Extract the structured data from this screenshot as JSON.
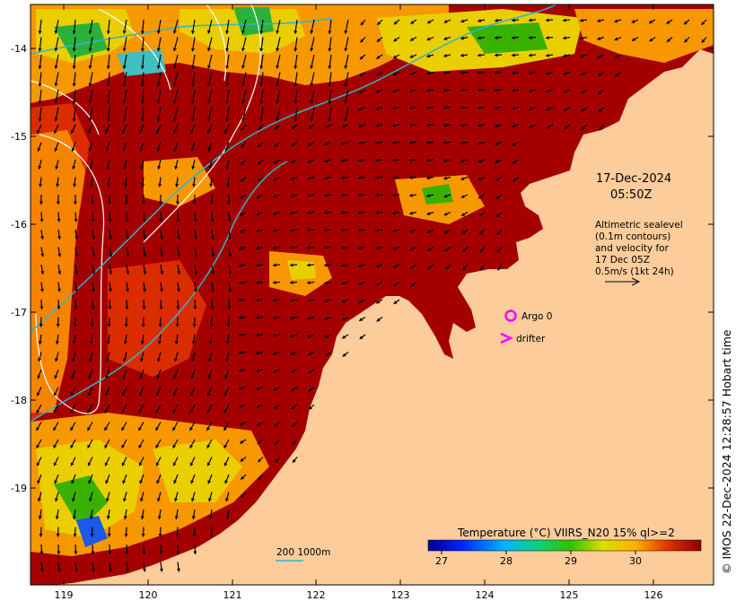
{
  "map": {
    "date_label": "17-Dec-2024",
    "time_label": "05:50Z",
    "legend_lines": [
      "Altimetric sealevel",
      "(0.1m contours)",
      "and velocity for",
      "17 Dec 05Z",
      "0.5m/s (1kt 24h)"
    ],
    "argo_label": "Argo 0",
    "drifter_label": "drifter",
    "scale_label": "200  1000m",
    "copyright": "© IMOS 22-Dec-2024 12:28:57 Hobart time",
    "y_ticks": [
      "-14",
      "-15",
      "-16",
      "-17",
      "-18",
      "-19"
    ],
    "x_ticks": [
      "119",
      "120",
      "121",
      "122",
      "123",
      "124",
      "125",
      "126"
    ],
    "colorbar": {
      "title": "Temperature (°C) VIIRS_N20 15% ql>=2",
      "ticks": [
        "27",
        "28",
        "29",
        "30"
      ]
    },
    "colors": {
      "land": "#fccc9a",
      "warm_water": "#a50000",
      "argo": "#ff00ff",
      "drifter": "#ff00ff",
      "contour_blue": "#2fb6c9"
    }
  }
}
